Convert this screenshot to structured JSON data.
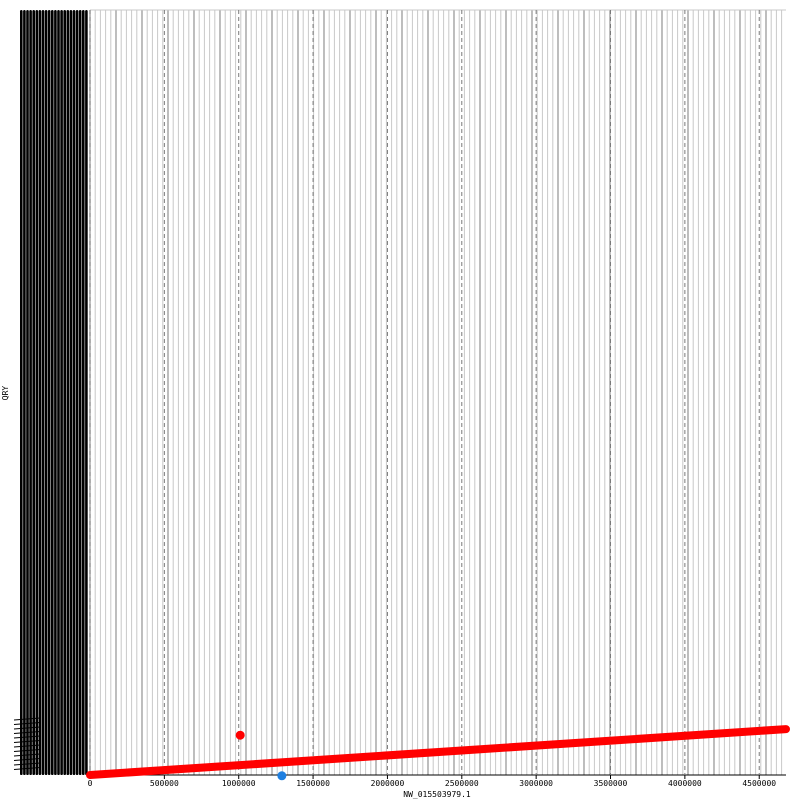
{
  "chart_data": {
    "type": "scatter",
    "title": "",
    "xlabel": "NW_015503979.1",
    "ylabel": "QRY",
    "xlim": [
      0,
      4680000
    ],
    "xticks": [
      0,
      500000,
      1000000,
      1500000,
      2000000,
      2500000,
      3000000,
      3500000,
      4000000,
      4500000
    ],
    "xtick_labels": [
      "0",
      "500000",
      "1000000",
      "1500000",
      "2000000",
      "2500000",
      "3000000",
      "3500000",
      "4000000",
      "4500000"
    ],
    "grid": true,
    "legend": "none",
    "series": [
      {
        "color": "#ff0000",
        "segments": [
          {
            "x1": 0,
            "y1": 0.0,
            "x2": 4680000,
            "y2": 0.06
          }
        ],
        "points": [
          {
            "x": 1010000,
            "y": 0.052
          }
        ]
      },
      {
        "color": "#1e7fe0",
        "points": [
          {
            "x": 1290000,
            "y": -0.001
          }
        ]
      }
    ]
  },
  "colors": {
    "grid_major": "#9a9a9a",
    "grid_minor": "#c8c8c8",
    "frame": "#000000",
    "forward": "#ff0000",
    "reverse": "#1e7fe0"
  }
}
